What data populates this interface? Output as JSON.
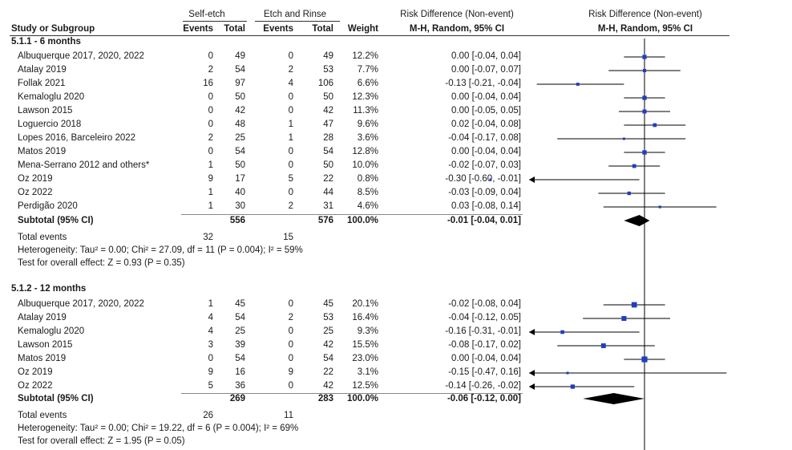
{
  "header": {
    "group1": "Self-etch",
    "group2": "Etch and Rinse",
    "effect_title": "Risk Difference (Non-event)",
    "plot_title": "Risk Difference (Non-event)",
    "study_col": "Study or Subgroup",
    "events1": "Events",
    "total1": "Total",
    "events2": "Events",
    "total2": "Total",
    "weight": "Weight",
    "method": "M-H, Random, 95% CI",
    "plot_method": "M-H, Random, 95% CI"
  },
  "subgroups": [
    {
      "title": "5.1.1 - 6 months",
      "studies": [
        {
          "name": "Albuquerque 2017, 2020, 2022",
          "e1": "0",
          "t1": "49",
          "e2": "0",
          "t2": "49",
          "weight": "12.2%",
          "ci": "0.00 [-0.04, 0.04]"
        },
        {
          "name": "Atalay 2019",
          "e1": "2",
          "t1": "54",
          "e2": "2",
          "t2": "53",
          "weight": "7.7%",
          "ci": "0.00 [-0.07, 0.07]"
        },
        {
          "name": "Follak 2021",
          "e1": "16",
          "t1": "97",
          "e2": "4",
          "t2": "106",
          "weight": "6.6%",
          "ci": "-0.13 [-0.21, -0.04]"
        },
        {
          "name": "Kemaloglu 2020",
          "e1": "0",
          "t1": "50",
          "e2": "0",
          "t2": "50",
          "weight": "12.3%",
          "ci": "0.00 [-0.04, 0.04]"
        },
        {
          "name": "Lawson 2015",
          "e1": "0",
          "t1": "42",
          "e2": "0",
          "t2": "42",
          "weight": "11.3%",
          "ci": "0.00 [-0.05, 0.05]"
        },
        {
          "name": "Loguercio 2018",
          "e1": "0",
          "t1": "48",
          "e2": "1",
          "t2": "47",
          "weight": "9.6%",
          "ci": "0.02 [-0.04, 0.08]"
        },
        {
          "name": "Lopes 2016, Barceleiro 2022",
          "e1": "2",
          "t1": "25",
          "e2": "1",
          "t2": "28",
          "weight": "3.6%",
          "ci": "-0.04 [-0.17, 0.08]"
        },
        {
          "name": "Matos 2019",
          "e1": "0",
          "t1": "54",
          "e2": "0",
          "t2": "54",
          "weight": "12.8%",
          "ci": "0.00 [-0.04, 0.04]"
        },
        {
          "name": "Mena-Serrano 2012 and others*",
          "e1": "1",
          "t1": "50",
          "e2": "0",
          "t2": "50",
          "weight": "10.0%",
          "ci": "-0.02 [-0.07, 0.03]"
        },
        {
          "name": "Oz 2019",
          "e1": "9",
          "t1": "17",
          "e2": "5",
          "t2": "22",
          "weight": "0.8%",
          "ci": "-0.30 [-0.60, -0.01]"
        },
        {
          "name": "Oz 2022",
          "e1": "1",
          "t1": "40",
          "e2": "0",
          "t2": "44",
          "weight": "8.5%",
          "ci": "-0.03 [-0.09, 0.04]"
        },
        {
          "name": "Perdigão 2020",
          "e1": "1",
          "t1": "30",
          "e2": "2",
          "t2": "31",
          "weight": "4.6%",
          "ci": "0.03 [-0.08, 0.14]"
        }
      ],
      "subtotal": {
        "label": "Subtotal (95% CI)",
        "t1": "556",
        "t2": "576",
        "weight": "100.0%",
        "ci": "-0.01 [-0.04, 0.01]"
      },
      "total_events": {
        "label": "Total events",
        "e1": "32",
        "e2": "15"
      },
      "heterogeneity": "Heterogeneity: Tau² = 0.00; Chi² = 27.09, df = 11 (P = 0.004); I² = 59%",
      "overall": "Test for overall effect: Z = 0.93 (P = 0.35)"
    },
    {
      "title": "5.1.2 - 12 months",
      "studies": [
        {
          "name": "Albuquerque 2017, 2020, 2022",
          "e1": "1",
          "t1": "45",
          "e2": "0",
          "t2": "45",
          "weight": "20.1%",
          "ci": "-0.02 [-0.08, 0.04]"
        },
        {
          "name": "Atalay 2019",
          "e1": "4",
          "t1": "54",
          "e2": "2",
          "t2": "53",
          "weight": "16.4%",
          "ci": "-0.04 [-0.12, 0.05]"
        },
        {
          "name": "Kemaloglu 2020",
          "e1": "4",
          "t1": "25",
          "e2": "0",
          "t2": "25",
          "weight": "9.3%",
          "ci": "-0.16 [-0.31, -0.01]"
        },
        {
          "name": "Lawson 2015",
          "e1": "3",
          "t1": "39",
          "e2": "0",
          "t2": "42",
          "weight": "15.5%",
          "ci": "-0.08 [-0.17, 0.02]"
        },
        {
          "name": "Matos 2019",
          "e1": "0",
          "t1": "54",
          "e2": "0",
          "t2": "54",
          "weight": "23.0%",
          "ci": "0.00 [-0.04, 0.04]"
        },
        {
          "name": "Oz 2019",
          "e1": "9",
          "t1": "16",
          "e2": "9",
          "t2": "22",
          "weight": "3.1%",
          "ci": "-0.15 [-0.47, 0.16]"
        },
        {
          "name": "Oz 2022",
          "e1": "5",
          "t1": "36",
          "e2": "0",
          "t2": "42",
          "weight": "12.5%",
          "ci": "-0.14 [-0.26, -0.02]"
        }
      ],
      "subtotal": {
        "label": "Subtotal (95% CI)",
        "t1": "269",
        "t2": "283",
        "weight": "100.0%",
        "ci": "-0.06 [-0.12, 0.00]"
      },
      "total_events": {
        "label": "Total events",
        "e1": "26",
        "e2": "11"
      },
      "heterogeneity": "Heterogeneity: Tau² = 0.00; Chi² = 19.22, df = 6 (P = 0.004); I² = 69%",
      "overall": "Test for overall effect: Z = 1.95 (P = 0.05)"
    }
  ],
  "chart_data": {
    "type": "forest",
    "title": "Risk Difference (Non-event)",
    "subtitle": "M-H, Random, 95% CI",
    "colors": {
      "marker": "#1f3fbf",
      "line": "#000000",
      "diamond": "#000000"
    },
    "series": [
      {
        "name": "5.1.1 - 6 months",
        "studies": [
          {
            "est": 0.0,
            "lo": -0.04,
            "hi": 0.04,
            "w": 12.2
          },
          {
            "est": 0.0,
            "lo": -0.07,
            "hi": 0.07,
            "w": 7.7
          },
          {
            "est": -0.13,
            "lo": -0.21,
            "hi": -0.04,
            "w": 6.6
          },
          {
            "est": 0.0,
            "lo": -0.04,
            "hi": 0.04,
            "w": 12.3
          },
          {
            "est": 0.0,
            "lo": -0.05,
            "hi": 0.05,
            "w": 11.3
          },
          {
            "est": 0.02,
            "lo": -0.04,
            "hi": 0.08,
            "w": 9.6
          },
          {
            "est": -0.04,
            "lo": -0.17,
            "hi": 0.08,
            "w": 3.6
          },
          {
            "est": 0.0,
            "lo": -0.04,
            "hi": 0.04,
            "w": 12.8
          },
          {
            "est": -0.02,
            "lo": -0.07,
            "hi": 0.03,
            "w": 10.0
          },
          {
            "est": -0.3,
            "lo": -0.6,
            "hi": -0.01,
            "w": 0.8
          },
          {
            "est": -0.03,
            "lo": -0.09,
            "hi": 0.04,
            "w": 8.5
          },
          {
            "est": 0.03,
            "lo": -0.08,
            "hi": 0.14,
            "w": 4.6
          }
        ],
        "pooled": {
          "est": -0.01,
          "lo": -0.04,
          "hi": 0.01
        }
      },
      {
        "name": "5.1.2 - 12 months",
        "studies": [
          {
            "est": -0.02,
            "lo": -0.08,
            "hi": 0.04,
            "w": 20.1
          },
          {
            "est": -0.04,
            "lo": -0.12,
            "hi": 0.05,
            "w": 16.4
          },
          {
            "est": -0.16,
            "lo": -0.31,
            "hi": -0.01,
            "w": 9.3
          },
          {
            "est": -0.08,
            "lo": -0.17,
            "hi": 0.02,
            "w": 15.5
          },
          {
            "est": 0.0,
            "lo": -0.04,
            "hi": 0.04,
            "w": 23.0
          },
          {
            "est": -0.15,
            "lo": -0.47,
            "hi": 0.16,
            "w": 3.1
          },
          {
            "est": -0.14,
            "lo": -0.26,
            "hi": -0.02,
            "w": 12.5
          }
        ],
        "pooled": {
          "est": -0.06,
          "lo": -0.12,
          "hi": 0.0
        }
      }
    ],
    "xlim": [
      -0.15,
      0.15
    ]
  }
}
